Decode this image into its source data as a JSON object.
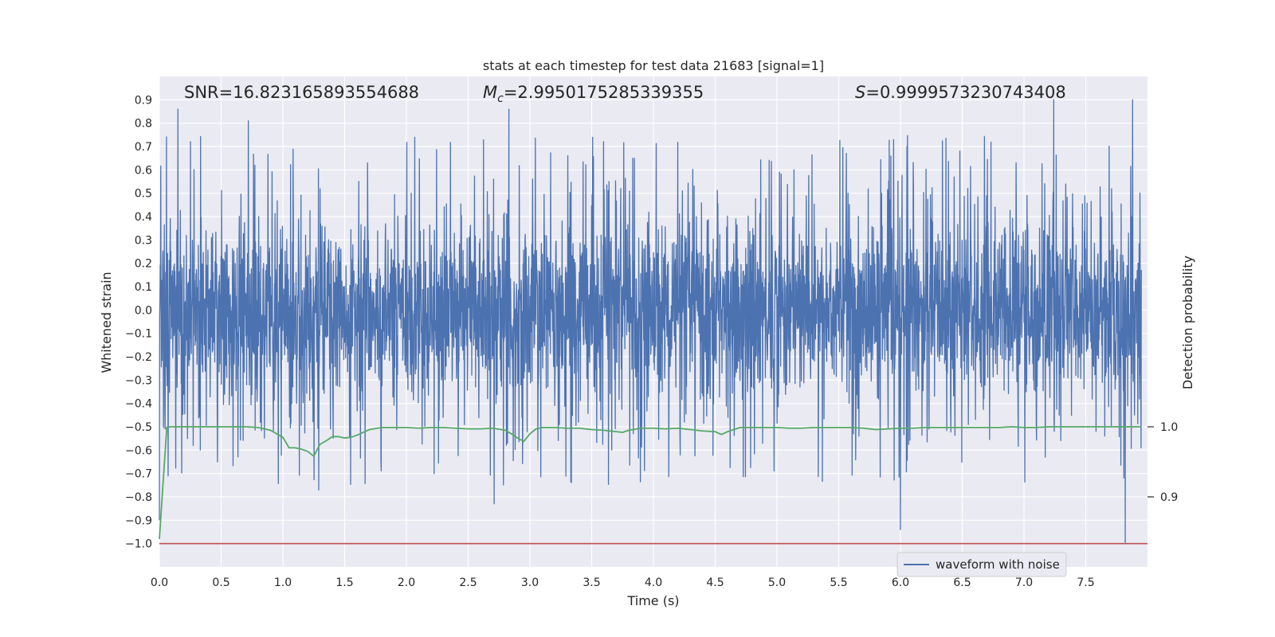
{
  "chart_data": {
    "type": "line",
    "title": "stats at each timestep for test data 21683 [signal=1]",
    "xlabel": "Time (s)",
    "ylabel": "Whitened strain",
    "ylabel_right": "Detection probability",
    "xlim": [
      0.0,
      8.0
    ],
    "ylim": [
      -1.1,
      1.0
    ],
    "ylim_right": [
      0.8,
      1.5
    ],
    "xticks": [
      "0.0",
      "0.5",
      "1.0",
      "1.5",
      "2.0",
      "2.5",
      "3.0",
      "3.5",
      "4.0",
      "4.5",
      "5.0",
      "5.5",
      "6.0",
      "6.5",
      "7.0",
      "7.5"
    ],
    "xtick_values": [
      0.0,
      0.5,
      1.0,
      1.5,
      2.0,
      2.5,
      3.0,
      3.5,
      4.0,
      4.5,
      5.0,
      5.5,
      6.0,
      6.5,
      7.0,
      7.5
    ],
    "yticks": [
      "0.9",
      "0.8",
      "0.7",
      "0.6",
      "0.5",
      "0.4",
      "0.3",
      "0.2",
      "0.1",
      "0.0",
      "−0.1",
      "−0.2",
      "−0.3",
      "−0.4",
      "−0.5",
      "−0.6",
      "−0.7",
      "−0.8",
      "−0.9",
      "−1.0"
    ],
    "ytick_values": [
      0.9,
      0.8,
      0.7,
      0.6,
      0.5,
      0.4,
      0.3,
      0.2,
      0.1,
      0.0,
      -0.1,
      -0.2,
      -0.3,
      -0.4,
      -0.5,
      -0.6,
      -0.7,
      -0.8,
      -0.9,
      -1.0
    ],
    "yticks_right": [
      "1.0",
      "0.9"
    ],
    "ytick_right_values": [
      1.0,
      0.9
    ],
    "grid": true,
    "legend": {
      "placement": "bottom-right",
      "entries": [
        "waveform with noise"
      ]
    },
    "annotations": {
      "snr": "SNR=16.823165893554688",
      "mc_symbol": "M",
      "mc_sub": "c",
      "mc_value": "=2.9950175285339355",
      "s_symbol": "S",
      "s_value": "=0.9999573230743408"
    },
    "series": [
      {
        "name": "waveform with noise",
        "color": "#4c72b0",
        "axis": "left",
        "notable_values": [
          {
            "x": 0.01,
            "y": 0.74
          },
          {
            "x": 0.07,
            "y": -0.71
          },
          {
            "x": 0.15,
            "y": 0.86
          },
          {
            "x": 0.72,
            "y": 0.81
          },
          {
            "x": 1.29,
            "y": -0.77
          },
          {
            "x": 2.71,
            "y": -0.83
          },
          {
            "x": 2.83,
            "y": 0.86
          },
          {
            "x": 6.0,
            "y": -0.94
          },
          {
            "x": 7.24,
            "y": 0.9
          },
          {
            "x": 7.82,
            "y": -1.0
          },
          {
            "x": 7.88,
            "y": 0.9
          }
        ]
      },
      {
        "name": "",
        "color": "#55a868",
        "axis": "right",
        "x": [
          0.0,
          0.03,
          0.06,
          0.1,
          0.2,
          0.3,
          0.4,
          0.5,
          0.6,
          0.7,
          0.8,
          0.9,
          0.95,
          1.0,
          1.05,
          1.1,
          1.15,
          1.2,
          1.25,
          1.3,
          1.35,
          1.4,
          1.45,
          1.5,
          1.55,
          1.6,
          1.7,
          1.8,
          2.0,
          2.1,
          2.2,
          2.3,
          2.4,
          2.5,
          2.6,
          2.7,
          2.8,
          2.85,
          2.9,
          2.95,
          3.0,
          3.05,
          3.1,
          3.2,
          3.3,
          3.4,
          3.5,
          3.6,
          3.7,
          3.75,
          3.8,
          3.9,
          4.0,
          4.1,
          4.2,
          4.3,
          4.4,
          4.5,
          4.55,
          4.6,
          4.7,
          4.8,
          4.9,
          5.0,
          5.1,
          5.2,
          5.3,
          5.4,
          5.5,
          5.6,
          5.7,
          5.8,
          5.9,
          6.0,
          6.1,
          6.2,
          6.3,
          6.4,
          6.5,
          6.6,
          6.7,
          6.8,
          6.9,
          7.0,
          7.1,
          7.2,
          7.3,
          7.4,
          7.5,
          7.6,
          7.7,
          7.8,
          7.9,
          7.95
        ],
        "y": [
          0.84,
          0.92,
          0.9995,
          1.0,
          1.0,
          1.0,
          1.0,
          1.0,
          1.0,
          1.0,
          0.999,
          0.995,
          0.99,
          0.985,
          0.97,
          0.97,
          0.968,
          0.965,
          0.958,
          0.975,
          0.98,
          0.986,
          0.986,
          0.984,
          0.985,
          0.988,
          0.996,
          0.999,
          0.999,
          0.998,
          0.999,
          0.999,
          0.998,
          0.997,
          0.997,
          0.998,
          0.995,
          0.99,
          0.984,
          0.979,
          0.99,
          0.997,
          0.999,
          0.999,
          0.998,
          0.998,
          0.996,
          0.995,
          0.993,
          0.992,
          0.995,
          0.998,
          0.998,
          0.997,
          0.998,
          0.996,
          0.994,
          0.993,
          0.989,
          0.993,
          0.999,
          0.999,
          0.999,
          0.999,
          0.998,
          0.998,
          0.999,
          0.999,
          0.999,
          0.999,
          0.998,
          0.996,
          0.997,
          0.998,
          0.998,
          0.999,
          0.999,
          0.999,
          0.999,
          0.999,
          0.999,
          0.999,
          1.0,
          0.999,
          0.999,
          1.0,
          1.0,
          1.0,
          1.0,
          1.0,
          1.0,
          1.0,
          1.0,
          1.0
        ]
      },
      {
        "name": "",
        "color": "#c44e52",
        "axis": "left",
        "type": "hline",
        "y": -1.0
      }
    ]
  }
}
